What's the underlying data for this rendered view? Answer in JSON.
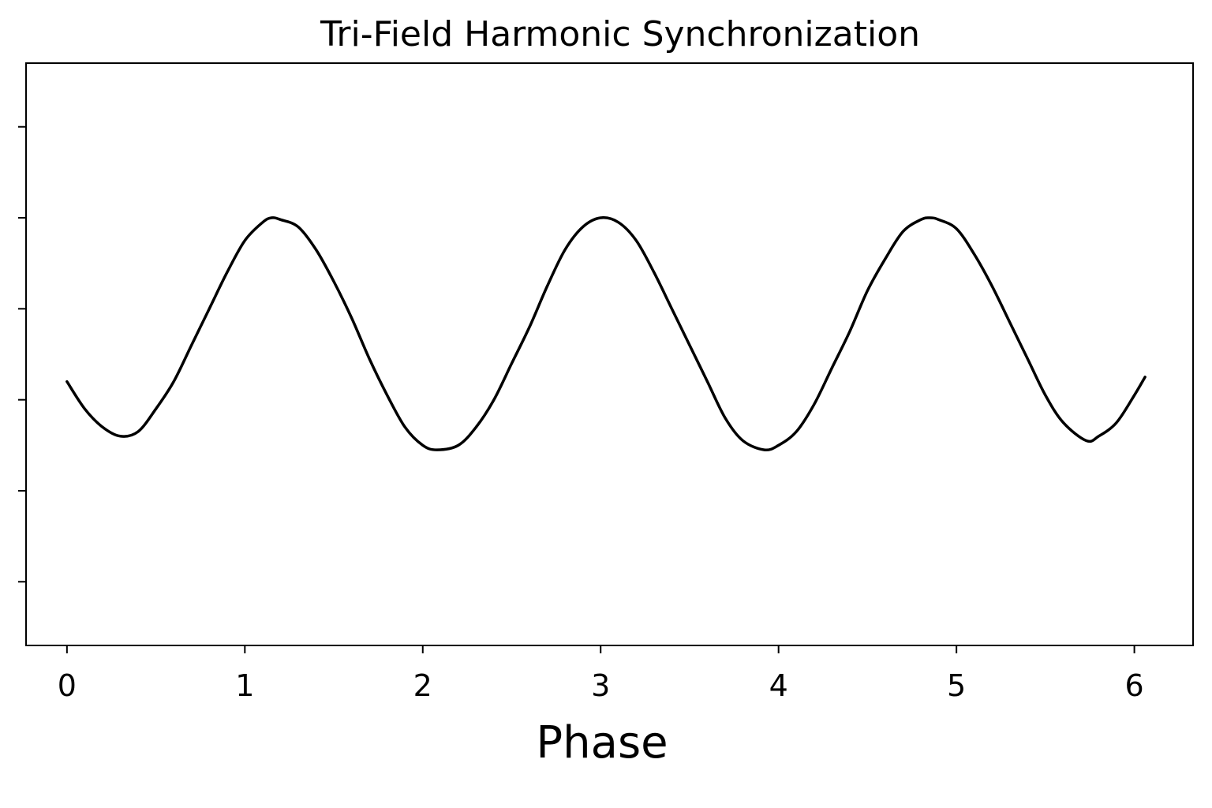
{
  "chart_data": {
    "type": "line",
    "title": "Tri-Field Harmonic Synchronization",
    "xlabel": "Phase",
    "ylabel": "",
    "xlim": [
      -0.23,
      6.33
    ],
    "ylim": [
      -3.2,
      3.2
    ],
    "grid": false,
    "legend": "none",
    "x_ticks": [
      {
        "value": 0,
        "label": "0"
      },
      {
        "value": 1,
        "label": "1"
      },
      {
        "value": 2,
        "label": "2"
      },
      {
        "value": 3,
        "label": "3"
      },
      {
        "value": 4,
        "label": "4"
      },
      {
        "value": 5,
        "label": "5"
      },
      {
        "value": 6,
        "label": "6"
      }
    ],
    "y_ticks": [
      {
        "value": -2.5,
        "label": ""
      },
      {
        "value": -1.5,
        "label": ""
      },
      {
        "value": -0.5,
        "label": ""
      },
      {
        "value": 0.5,
        "label": ""
      },
      {
        "value": 1.5,
        "label": ""
      },
      {
        "value": 2.5,
        "label": ""
      }
    ],
    "series": [
      {
        "color": "#000000",
        "points": [
          [
            0.0,
            -0.3
          ],
          [
            0.1,
            -0.6
          ],
          [
            0.2,
            -0.8
          ],
          [
            0.3,
            -0.9
          ],
          [
            0.4,
            -0.85
          ],
          [
            0.5,
            -0.6
          ],
          [
            0.6,
            -0.3
          ],
          [
            0.7,
            0.1
          ],
          [
            0.8,
            0.5
          ],
          [
            0.9,
            0.9
          ],
          [
            1.0,
            1.25
          ],
          [
            1.1,
            1.45
          ],
          [
            1.15,
            1.5
          ],
          [
            1.2,
            1.48
          ],
          [
            1.3,
            1.4
          ],
          [
            1.4,
            1.15
          ],
          [
            1.5,
            0.8
          ],
          [
            1.6,
            0.4
          ],
          [
            1.7,
            -0.05
          ],
          [
            1.8,
            -0.45
          ],
          [
            1.9,
            -0.8
          ],
          [
            2.0,
            -1.0
          ],
          [
            2.08,
            -1.05
          ],
          [
            2.2,
            -1.0
          ],
          [
            2.3,
            -0.8
          ],
          [
            2.4,
            -0.5
          ],
          [
            2.5,
            -0.1
          ],
          [
            2.6,
            0.3
          ],
          [
            2.7,
            0.75
          ],
          [
            2.8,
            1.15
          ],
          [
            2.9,
            1.4
          ],
          [
            3.0,
            1.5
          ],
          [
            3.1,
            1.45
          ],
          [
            3.2,
            1.25
          ],
          [
            3.3,
            0.9
          ],
          [
            3.4,
            0.5
          ],
          [
            3.5,
            0.1
          ],
          [
            3.6,
            -0.3
          ],
          [
            3.7,
            -0.7
          ],
          [
            3.8,
            -0.95
          ],
          [
            3.92,
            -1.05
          ],
          [
            4.0,
            -1.0
          ],
          [
            4.1,
            -0.85
          ],
          [
            4.2,
            -0.55
          ],
          [
            4.3,
            -0.15
          ],
          [
            4.4,
            0.25
          ],
          [
            4.5,
            0.7
          ],
          [
            4.6,
            1.05
          ],
          [
            4.7,
            1.35
          ],
          [
            4.8,
            1.48
          ],
          [
            4.85,
            1.5
          ],
          [
            4.9,
            1.48
          ],
          [
            5.0,
            1.38
          ],
          [
            5.1,
            1.1
          ],
          [
            5.2,
            0.75
          ],
          [
            5.3,
            0.35
          ],
          [
            5.4,
            -0.05
          ],
          [
            5.5,
            -0.45
          ],
          [
            5.6,
            -0.75
          ],
          [
            5.73,
            -0.95
          ],
          [
            5.8,
            -0.9
          ],
          [
            5.9,
            -0.75
          ],
          [
            6.0,
            -0.45
          ],
          [
            6.06,
            -0.25
          ]
        ]
      }
    ]
  }
}
